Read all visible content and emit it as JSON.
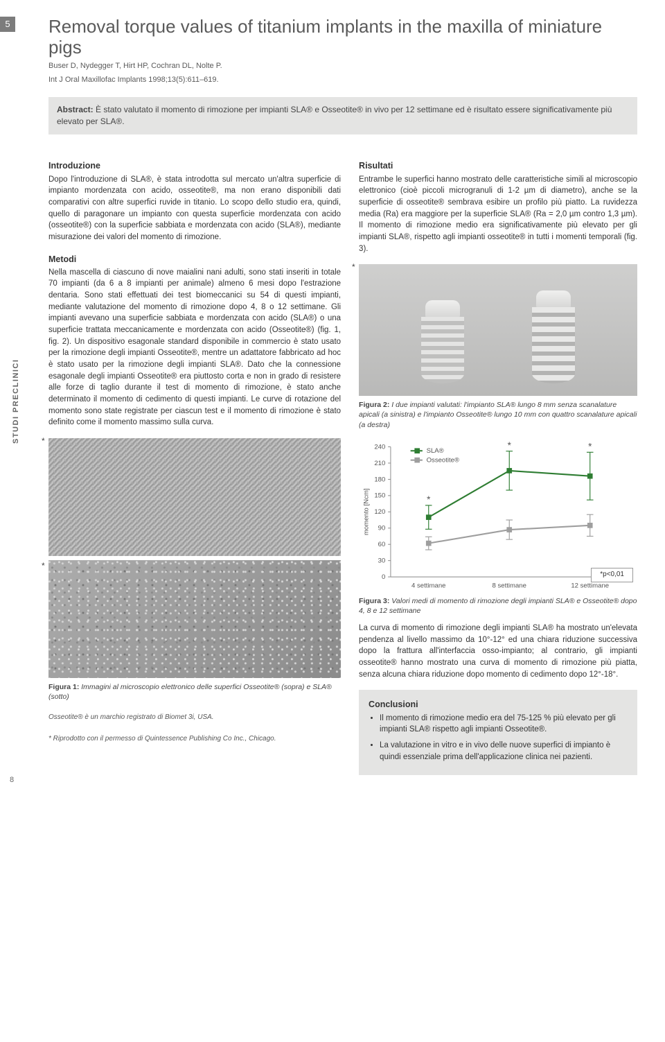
{
  "page_badge": "5",
  "page_number": "8",
  "sidebar_label": "STUDI PRECLINICI",
  "title": "Removal torque values of titanium implants in the maxilla of miniature pigs",
  "authors": "Buser D, Nydegger T, Hirt HP, Cochran DL, Nolte P.",
  "citation": "Int J Oral Maxillofac Implants 1998;13(5):611–619.",
  "abstract_label": "Abstract:",
  "abstract_text": " È stato valutato il momento di rimozione per impianti SLA® e Osseotite® in vivo per 12 settimane ed è risultato essere significativamente più elevato per SLA®.",
  "sections": {
    "intro_heading": "Introduzione",
    "intro_text": "Dopo l'introduzione di SLA®, è stata introdotta sul mercato un'altra superficie di impianto mordenzata con acido, osseotite®, ma non erano disponibili dati comparativi con altre superfici ruvide in titanio. Lo scopo dello studio era, quindi, quello di paragonare un impianto con questa superficie mordenzata con acido (osseotite®) con la superficie sabbiata e mordenzata con acido (SLA®), mediante misurazione dei valori del momento di rimozione.",
    "methods_heading": "Metodi",
    "methods_text": "Nella mascella di ciascuno di nove maialini nani adulti, sono stati inseriti in totale 70 impianti (da 6 a 8 impianti per animale) almeno 6 mesi dopo l'estrazione dentaria. Sono stati effettuati dei test biomeccanici su 54 di questi impianti, mediante valutazione del momento di rimozione dopo 4, 8 o 12 settimane. Gli impianti avevano una superficie sabbiata e mordenzata con acido (SLA®) o una superficie trattata meccanicamente e mordenzata con acido (Osseotite®) (fig. 1, fig. 2). Un dispositivo esagonale standard disponibile in commercio è stato usato per la rimozione degli impianti Osseotite®, mentre un adattatore fabbricato ad hoc è stato usato per la rimozione degli impianti SLA®. Dato che la connessione esagonale degli impianti Osseotite® era piuttosto corta e non in grado di resistere alle forze di taglio durante il test di momento di rimozione, è stato anche determinato il momento di cedimento di questi impianti. Le curve di rotazione del momento sono state registrate per ciascun test e il momento di rimozione è stato definito come il momento massimo sulla curva.",
    "results_heading": "Risultati",
    "results_text": "Entrambe le superfici hanno mostrato delle caratteristiche simili al microscopio elettronico (cioè piccoli microgranuli di 1-2 µm di diametro), anche se la superficie di osseotite® sembrava esibire un profilo più piatto. La ruvidezza media (Ra) era maggiore per la superficie SLA® (Ra = 2,0 µm contro 1,3 µm). Il momento di rimozione medio era significativamente più elevato per gli impianti SLA®, rispetto agli impianti osseotite® in tutti i momenti temporali (fig. 3).",
    "results_text2": "La curva di momento di rimozione degli impianti SLA® ha mostrato un'elevata pendenza al livello massimo da 10°-12° ed una chiara riduzione successiva dopo la frattura all'interfaccia osso-impianto; al contrario, gli impianti osseotite® hanno mostrato una curva di momento di rimozione più piatta, senza alcuna chiara riduzione dopo momento di cedimento dopo 12°-18°.",
    "conclusions_heading": "Conclusioni",
    "conclusion_items": [
      "Il momento di rimozione medio era del 75-125 % più elevato per gli impianti SLA® rispetto agli impianti Osseotite®.",
      "La valutazione in vitro e in vivo delle nuove superfici di impianto è quindi essenziale prima dell'applicazione clinica nei pazienti."
    ]
  },
  "figures": {
    "fig1_caption_bold": "Figura 1:",
    "fig1_caption": " Immagini al microscopio elettronico delle superfici Osseotite® (sopra) e SLA® (sotto)",
    "fig2_caption_bold": "Figura 2:",
    "fig2_caption": " I due impianti valutati: l'impianto SLA® lungo 8 mm senza scanalature apicali (a sinistra) e l'impianto Osseotite® lungo 10 mm con quattro scanalature apicali (a destra)",
    "fig3_caption_bold": "Figura 3:",
    "fig3_caption": " Valori medi di momento di rimozione degli impianti SLA® e Osseotite® dopo 4, 8 e 12 settimane"
  },
  "footnotes": {
    "trademark": "Osseotite® è un marchio registrato di Biomet 3i, USA.",
    "permission": "* Riprodotto con il permesso di Quintessence Publishing Co Inc., Chicago."
  },
  "chart": {
    "type": "line",
    "y_label": "momento [Ncm]",
    "x_categories": [
      "4 settimane",
      "8 settimane",
      "12 settimane"
    ],
    "ylim": [
      0,
      240
    ],
    "ytick_step": 30,
    "yticks": [
      0,
      30,
      60,
      90,
      120,
      150,
      180,
      210,
      240
    ],
    "series": [
      {
        "name": "SLA®",
        "color": "#2e7d32",
        "marker": "square",
        "values": [
          110,
          196,
          186
        ],
        "err": [
          22,
          36,
          44
        ],
        "sig": [
          "*",
          "*",
          "*"
        ]
      },
      {
        "name": "Osseotite®",
        "color": "#9e9e9e",
        "marker": "square",
        "values": [
          62,
          87,
          95
        ],
        "err": [
          12,
          18,
          20
        ],
        "sig": [
          "",
          "",
          ""
        ]
      }
    ],
    "p_label": "*p<0,01",
    "background_color": "#ffffff",
    "axis_color": "#888888",
    "tick_fontsize": 10
  }
}
